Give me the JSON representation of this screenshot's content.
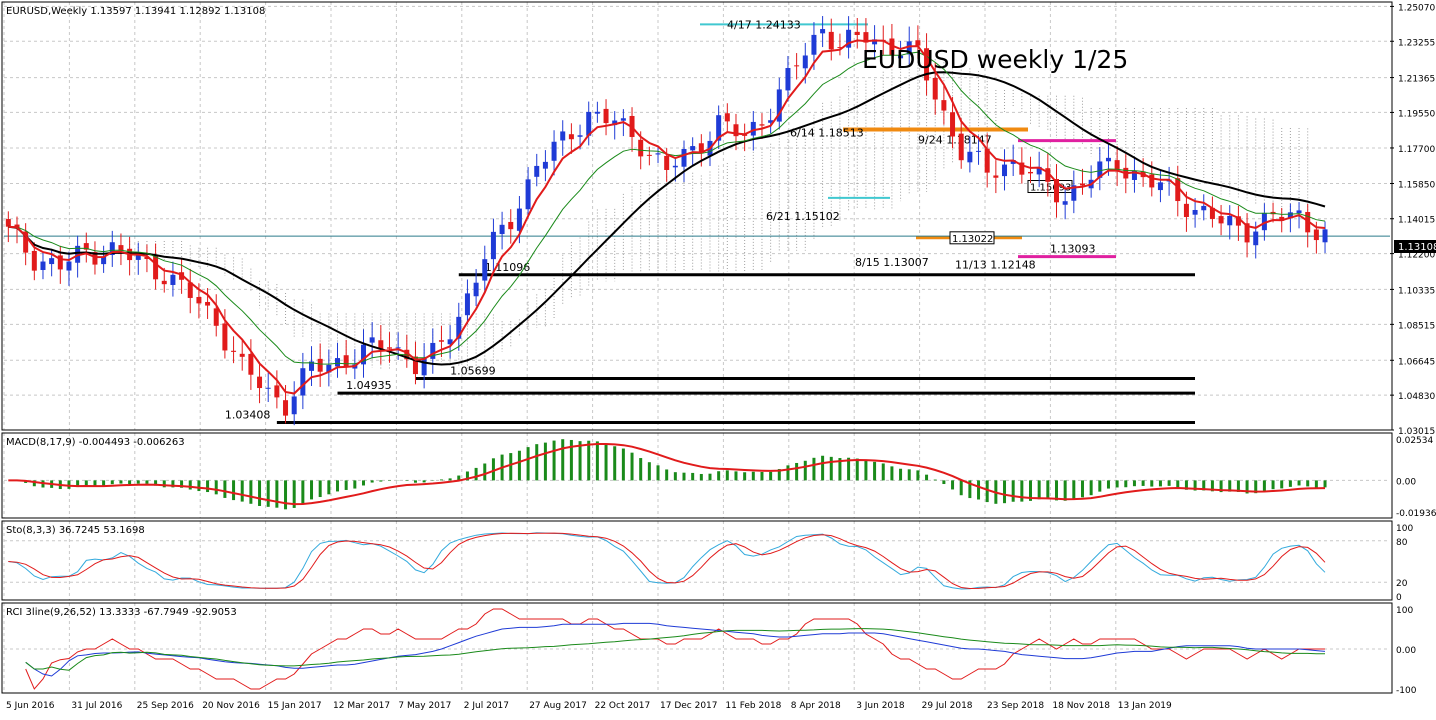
{
  "symbol_header": "EURUSD,Weekly  1.13597 1.13941 1.12892 1.13108",
  "chart_title": "EUDUSD weekly 1/25",
  "current_price": "1.13108",
  "colors": {
    "bull_candle": "#1f3bd6",
    "bear_candle": "#e11b1b",
    "ema_fast": "#e11b1b",
    "ema_mid": "#1a8a1a",
    "sma_slow": "#000000",
    "cloud": "#a0a0a0",
    "macd_hist": "#1a8a1a",
    "macd_signal": "#e11b1b",
    "sto_main": "#33aadd",
    "sto_signal": "#e11b1b",
    "rci_short": "#e11b1b",
    "rci_mid": "#1f3bd6",
    "rci_long": "#1a8a1a",
    "grid": "#c8c8c8",
    "orange_level": "#f08a10",
    "magenta_level": "#e020a0",
    "cyan_level": "#40c8d0"
  },
  "chart_data": [
    {
      "type": "candlestick",
      "panel": "price",
      "ylim": [
        1.03015,
        1.253
      ],
      "y_ticks": [
        "1.25070",
        "1.23255",
        "1.21365",
        "1.19550",
        "1.17700",
        "1.15850",
        "1.14015",
        "1.12200",
        "1.10335",
        "1.08515",
        "1.06645",
        "1.04830",
        "1.03015"
      ],
      "x_ticks": [
        "5 Jun 2016",
        "31 Jul 2016",
        "25 Sep 2016",
        "20 Nov 2016",
        "15 Jan 2017",
        "12 Mar 2017",
        "7 May 2017",
        "2 Jul 2017",
        "27 Aug 2017",
        "22 Oct 2017",
        "17 Dec 2017",
        "11 Feb 2018",
        "8 Apr 2018",
        "3 Jun 2018",
        "29 Jul 2018",
        "23 Sep 2018",
        "18 Nov 2018",
        "13 Jan 2019"
      ],
      "close_anchors": [
        [
          0,
          1.133
        ],
        [
          3,
          1.12
        ],
        [
          6,
          1.115
        ],
        [
          9,
          1.123
        ],
        [
          12,
          1.124
        ],
        [
          15,
          1.118
        ],
        [
          18,
          1.112
        ],
        [
          21,
          1.1
        ],
        [
          24,
          1.087
        ],
        [
          27,
          1.062
        ],
        [
          30,
          1.05
        ],
        [
          32,
          1.044
        ],
        [
          35,
          1.062
        ],
        [
          38,
          1.066
        ],
        [
          41,
          1.07
        ],
        [
          44,
          1.076
        ],
        [
          47,
          1.064
        ],
        [
          49,
          1.068
        ],
        [
          52,
          1.09
        ],
        [
          55,
          1.12
        ],
        [
          58,
          1.14
        ],
        [
          61,
          1.168
        ],
        [
          64,
          1.18
        ],
        [
          67,
          1.195
        ],
        [
          70,
          1.19
        ],
        [
          73,
          1.18
        ],
        [
          76,
          1.165
        ],
        [
          79,
          1.176
        ],
        [
          82,
          1.19
        ],
        [
          85,
          1.182
        ],
        [
          88,
          1.198
        ],
        [
          91,
          1.22
        ],
        [
          94,
          1.24
        ],
        [
          96,
          1.23
        ],
        [
          99,
          1.235
        ],
        [
          102,
          1.23
        ],
        [
          105,
          1.225
        ],
        [
          108,
          1.195
        ],
        [
          110,
          1.175
        ],
        [
          113,
          1.165
        ],
        [
          116,
          1.17
        ],
        [
          119,
          1.16
        ],
        [
          122,
          1.152
        ],
        [
          125,
          1.162
        ],
        [
          128,
          1.17
        ],
        [
          131,
          1.16
        ],
        [
          134,
          1.155
        ],
        [
          137,
          1.145
        ],
        [
          140,
          1.138
        ],
        [
          143,
          1.135
        ],
        [
          146,
          1.14
        ],
        [
          149,
          1.142
        ],
        [
          152,
          1.131
        ]
      ],
      "levels": [
        {
          "label": "1.11096",
          "value": 1.11096
        },
        {
          "label": "1.05699",
          "value": 1.05699
        },
        {
          "label": "1.04935",
          "value": 1.04935
        },
        {
          "label": "1.03408",
          "value": 1.03408
        },
        {
          "label": "1.13022",
          "value": 1.13022
        },
        {
          "label": "1.13093",
          "value": 1.13093
        },
        {
          "label": "1.15693",
          "value": 1.15693
        }
      ],
      "annotations": [
        {
          "text": "4/17  1.24133",
          "value": 1.24133
        },
        {
          "text": "6/14  1.18513",
          "value": 1.18513
        },
        {
          "text": "9/24  1.18147",
          "value": 1.18147
        },
        {
          "text": "6/21  1.15102",
          "value": 1.15102
        },
        {
          "text": "8/15  1.13007",
          "value": 1.13007
        },
        {
          "text": "11/13  1.12148",
          "value": 1.12148
        }
      ]
    },
    {
      "type": "histogram+line",
      "panel": "macd",
      "label": "MACD(8,17,9) -0.004493 -0.006263",
      "ylim": [
        -0.019366,
        0.02534
      ],
      "y_ticks": [
        "0.02534",
        "0.00",
        "-0.019366"
      ]
    },
    {
      "type": "line",
      "panel": "stochastic",
      "label": "Sto(8,3,3) 36.7245 53.1698",
      "ylim": [
        0,
        100
      ],
      "y_ticks": [
        "100",
        "80",
        "20",
        "0"
      ],
      "levels": [
        80,
        20
      ]
    },
    {
      "type": "line",
      "panel": "rci",
      "label": "RCI 3line(9,26,52) 13.3333 -67.7949 -92.9053",
      "ylim": [
        -100,
        100
      ],
      "y_ticks": [
        "100",
        "0.00",
        "-100"
      ]
    }
  ]
}
